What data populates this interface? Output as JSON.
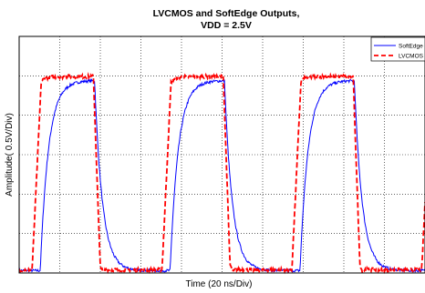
{
  "chart_data": {
    "type": "line",
    "title": "LVCMOS and SoftEdge Outputs,",
    "subtitle": "VDD = 2.5V",
    "xlabel": "Time (20 ns/Div)",
    "ylabel": "Amplitude( 0.5V/Div)",
    "x_divisions": 10,
    "y_divisions": 6,
    "xlim": [
      0,
      10
    ],
    "ylim": [
      0,
      6
    ],
    "grid": true,
    "grid_style": "dotted",
    "legend_position": "top-right",
    "series": [
      {
        "name": "SoftEdge",
        "color": "#0000ff",
        "style": "solid",
        "period": 3.2,
        "rise_start": 0.52,
        "fall_start": 1.86,
        "rise_tau": 0.2,
        "fall_tau": 0.19,
        "low": 0.06,
        "high": 4.88
      },
      {
        "name": "LVCMOS",
        "color": "#ff0000",
        "style": "dashed",
        "period": 3.2,
        "rise_start": 0.32,
        "rise_end": 0.55,
        "fall_start": 1.83,
        "fall_end": 2.0,
        "low": 0.08,
        "high": 4.98
      }
    ]
  }
}
